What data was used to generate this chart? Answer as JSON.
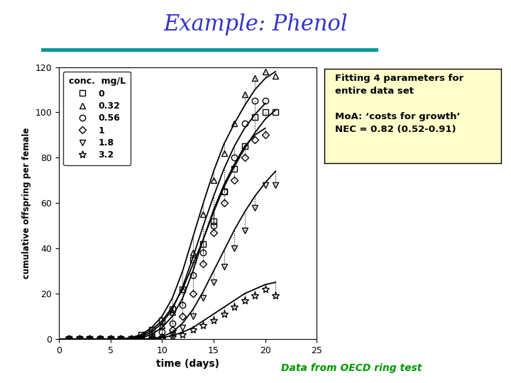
{
  "title": "Example: Phenol",
  "title_color": "#3333cc",
  "title_fontsize": 22,
  "xlabel": "time (days)",
  "ylabel": "cumulative offspring per female",
  "xlim": [
    0,
    25
  ],
  "ylim": [
    0,
    120
  ],
  "xticks": [
    0,
    5,
    10,
    15,
    20,
    25
  ],
  "yticks": [
    0,
    20,
    40,
    60,
    80,
    100,
    120
  ],
  "legend_title": "conc.  mg/L",
  "legend_entries": [
    "0",
    "0.32",
    "0.56",
    "1",
    "1.8",
    "3.2"
  ],
  "legend_markers": [
    "s",
    "^",
    "o",
    "D",
    "v",
    "*"
  ],
  "annotation_box_text": "Fitting 4 parameters for\nentire data set\n\nMoA: ‘costs for growth’\nNEC = 0.82 (0.52-0.91)",
  "annotation_box_color": "#ffffcc",
  "footer_text": "Data from OECD ring test",
  "footer_color": "#009900",
  "conc0_data_x": [
    1,
    2,
    3,
    4,
    5,
    6,
    7,
    8,
    9,
    10,
    11,
    12,
    13,
    14,
    15,
    16,
    17,
    18,
    19,
    20,
    21
  ],
  "conc0_data_y": [
    0,
    0,
    0,
    0,
    0,
    0,
    0,
    2,
    4,
    8,
    13,
    22,
    35,
    42,
    52,
    65,
    75,
    85,
    98,
    100,
    100
  ],
  "conc032_data_x": [
    1,
    2,
    3,
    4,
    5,
    6,
    7,
    8,
    9,
    10,
    11,
    12,
    13,
    14,
    15,
    16,
    17,
    18,
    19,
    20,
    21
  ],
  "conc032_data_y": [
    0,
    0,
    0,
    0,
    0,
    0,
    0,
    1,
    3,
    6,
    12,
    22,
    38,
    55,
    70,
    82,
    95,
    108,
    115,
    118,
    116
  ],
  "conc056_data_x": [
    1,
    2,
    3,
    4,
    5,
    6,
    7,
    8,
    9,
    10,
    11,
    12,
    13,
    14,
    15,
    16,
    17,
    18,
    19,
    20
  ],
  "conc056_data_y": [
    0,
    0,
    0,
    0,
    0,
    0,
    0,
    0,
    1,
    3,
    7,
    15,
    28,
    38,
    50,
    65,
    80,
    95,
    105,
    105
  ],
  "conc1_data_x": [
    1,
    2,
    3,
    4,
    5,
    6,
    7,
    8,
    9,
    10,
    11,
    12,
    13,
    14,
    15,
    16,
    17,
    18,
    19,
    20
  ],
  "conc1_data_y": [
    0,
    0,
    0,
    0,
    0,
    0,
    0,
    0,
    0,
    1,
    4,
    10,
    20,
    33,
    47,
    60,
    70,
    80,
    88,
    90
  ],
  "conc18_data_x": [
    1,
    2,
    3,
    4,
    5,
    6,
    7,
    8,
    9,
    10,
    11,
    12,
    13,
    14,
    15,
    16,
    17,
    18,
    19,
    20,
    21
  ],
  "conc18_data_y": [
    0,
    0,
    0,
    0,
    0,
    0,
    0,
    0,
    0,
    0,
    2,
    5,
    10,
    18,
    25,
    32,
    40,
    48,
    58,
    68,
    68
  ],
  "conc32_data_x": [
    1,
    2,
    3,
    4,
    5,
    6,
    7,
    8,
    9,
    10,
    11,
    12,
    13,
    14,
    15,
    16,
    17,
    18,
    19,
    20,
    21
  ],
  "conc32_data_y": [
    0,
    0,
    0,
    0,
    0,
    0,
    0,
    0,
    0,
    0,
    1,
    2,
    4,
    6,
    8,
    11,
    14,
    17,
    19,
    22,
    19
  ],
  "curve0_x": [
    0,
    1,
    2,
    3,
    4,
    5,
    6,
    7,
    8,
    9,
    10,
    11,
    12,
    13,
    14,
    15,
    16,
    17,
    18,
    19,
    20,
    21
  ],
  "curve0_y": [
    0,
    0,
    0,
    0,
    0,
    0,
    0,
    0.5,
    1.5,
    4,
    8,
    14,
    22,
    33,
    44,
    56,
    67,
    76,
    84,
    91,
    97,
    101
  ],
  "curve032_x": [
    0,
    1,
    2,
    3,
    4,
    5,
    6,
    7,
    8,
    9,
    10,
    11,
    12,
    13,
    14,
    15,
    16,
    17,
    18,
    19,
    20,
    21
  ],
  "curve032_y": [
    0,
    0,
    0,
    0,
    0,
    0,
    0,
    0.5,
    2,
    5,
    10,
    18,
    30,
    45,
    60,
    74,
    86,
    95,
    103,
    110,
    115,
    118
  ],
  "curve056_x": [
    0,
    1,
    2,
    3,
    4,
    5,
    6,
    7,
    8,
    9,
    10,
    11,
    12,
    13,
    14,
    15,
    16,
    17,
    18,
    19,
    20
  ],
  "curve056_y": [
    0,
    0,
    0,
    0,
    0,
    0,
    0,
    0.2,
    1,
    3,
    7,
    13,
    23,
    36,
    50,
    63,
    75,
    85,
    93,
    99,
    104
  ],
  "curve1_x": [
    0,
    1,
    2,
    3,
    4,
    5,
    6,
    7,
    8,
    9,
    10,
    11,
    12,
    13,
    14,
    15,
    16,
    17,
    18,
    19,
    20
  ],
  "curve1_y": [
    0,
    0,
    0,
    0,
    0,
    0,
    0,
    0,
    0.5,
    2,
    5,
    10,
    18,
    30,
    44,
    57,
    68,
    77,
    85,
    90,
    93
  ],
  "curve18_x": [
    0,
    1,
    2,
    3,
    4,
    5,
    6,
    7,
    8,
    9,
    10,
    11,
    12,
    13,
    14,
    15,
    16,
    17,
    18,
    19,
    20,
    21
  ],
  "curve18_y": [
    0,
    0,
    0,
    0,
    0,
    0,
    0,
    0,
    0,
    0,
    1,
    3,
    7,
    13,
    21,
    30,
    39,
    48,
    56,
    63,
    69,
    74
  ],
  "curve32_x": [
    0,
    1,
    2,
    3,
    4,
    5,
    6,
    7,
    8,
    9,
    10,
    11,
    12,
    13,
    14,
    15,
    16,
    17,
    18,
    19,
    20,
    21
  ],
  "curve32_y": [
    0,
    0,
    0,
    0,
    0,
    0,
    0,
    0,
    0,
    0,
    0.5,
    1.5,
    3,
    5,
    8,
    11,
    14,
    17,
    20,
    22,
    24,
    25
  ],
  "background_color": "#ffffff",
  "marker_size": 6,
  "line_color": "black",
  "line_width": 1.3
}
